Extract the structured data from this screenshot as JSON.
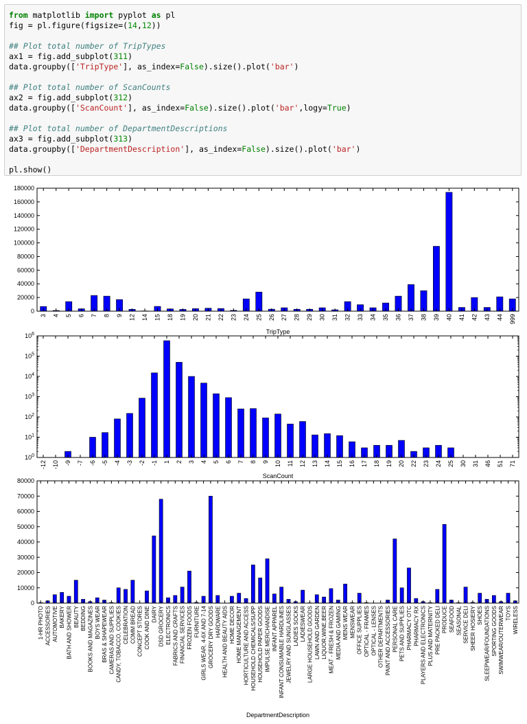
{
  "code_lines": [
    [
      [
        "kw",
        "from"
      ],
      [
        "plain",
        " matplotlib "
      ],
      [
        "kw",
        "import"
      ],
      [
        "plain",
        " pyplot "
      ],
      [
        "kw",
        "as"
      ],
      [
        "plain",
        " pl"
      ]
    ],
    [
      [
        "plain",
        "fig = pl.figure(figsize=("
      ],
      [
        "num",
        "14"
      ],
      [
        "plain",
        ","
      ],
      [
        "num",
        "12"
      ],
      [
        "plain",
        "))"
      ]
    ],
    [
      [
        "plain",
        ""
      ]
    ],
    [
      [
        "comment",
        "## Plot total number of TripTypes"
      ]
    ],
    [
      [
        "plain",
        "ax1 = fig.add_subplot("
      ],
      [
        "num",
        "311"
      ],
      [
        "plain",
        ")"
      ]
    ],
    [
      [
        "plain",
        "data.groupby(["
      ],
      [
        "str",
        "'TripType'"
      ],
      [
        "plain",
        "], as_index="
      ],
      [
        "bool",
        "False"
      ],
      [
        "plain",
        ").size().plot("
      ],
      [
        "str",
        "'bar'"
      ],
      [
        "plain",
        ")"
      ]
    ],
    [
      [
        "plain",
        ""
      ]
    ],
    [
      [
        "comment",
        "## Plot total number of ScanCounts"
      ]
    ],
    [
      [
        "plain",
        "ax2 = fig.add_subplot("
      ],
      [
        "num",
        "312"
      ],
      [
        "plain",
        ")"
      ]
    ],
    [
      [
        "plain",
        "data.groupby(["
      ],
      [
        "str",
        "'ScanCount'"
      ],
      [
        "plain",
        "], as_index="
      ],
      [
        "bool",
        "False"
      ],
      [
        "plain",
        ").size().plot("
      ],
      [
        "str",
        "'bar'"
      ],
      [
        "plain",
        ",logy="
      ],
      [
        "bool",
        "True"
      ],
      [
        "plain",
        ")"
      ]
    ],
    [
      [
        "plain",
        ""
      ]
    ],
    [
      [
        "comment",
        "## Plot total number of DepartmentDescriptions"
      ]
    ],
    [
      [
        "plain",
        "ax3 = fig.add_subplot("
      ],
      [
        "num",
        "313"
      ],
      [
        "plain",
        ")"
      ]
    ],
    [
      [
        "plain",
        "data.groupby(["
      ],
      [
        "str",
        "'DepartmentDescription'"
      ],
      [
        "plain",
        "], as_index="
      ],
      [
        "bool",
        "False"
      ],
      [
        "plain",
        ").size().plot("
      ],
      [
        "str",
        "'bar'"
      ],
      [
        "plain",
        ")"
      ]
    ],
    [
      [
        "plain",
        ""
      ]
    ],
    [
      [
        "plain",
        "pl.show()"
      ]
    ]
  ],
  "chart_data": [
    {
      "type": "bar",
      "xlabel": "TripType",
      "ylabel": "",
      "ylim": [
        0,
        180000
      ],
      "yticks": [
        0,
        20000,
        40000,
        60000,
        80000,
        100000,
        120000,
        140000,
        160000,
        180000
      ],
      "bar_color": "#0000ff",
      "categories": [
        "3",
        "4",
        "5",
        "6",
        "7",
        "8",
        "9",
        "12",
        "14",
        "15",
        "18",
        "19",
        "20",
        "21",
        "22",
        "23",
        "24",
        "25",
        "26",
        "27",
        "28",
        "29",
        "30",
        "31",
        "32",
        "33",
        "34",
        "35",
        "36",
        "37",
        "38",
        "39",
        "40",
        "41",
        "42",
        "43",
        "44",
        "999"
      ],
      "values": [
        6800,
        1000,
        14000,
        3500,
        23000,
        22000,
        17000,
        2700,
        400,
        7000,
        3300,
        2600,
        3700,
        4300,
        3900,
        1200,
        18000,
        28000,
        2900,
        5000,
        2800,
        2800,
        5000,
        2000,
        14000,
        9500,
        5000,
        12000,
        22000,
        39000,
        30000,
        95000,
        174000,
        5500,
        20000,
        5500,
        21000,
        18000
      ]
    },
    {
      "type": "bar",
      "log_scale": true,
      "xlabel": "ScanCount",
      "ylabel": "",
      "ylim": [
        1,
        1000000
      ],
      "ytick_labels": [
        "10^0",
        "10^1",
        "10^2",
        "10^3",
        "10^4",
        "10^5",
        "10^6"
      ],
      "bar_color": "#0000ff",
      "categories": [
        "-12",
        "-10",
        "-9",
        "-7",
        "-6",
        "-5",
        "-4",
        "-3",
        "-2",
        "-1",
        "1",
        "2",
        "3",
        "4",
        "5",
        "6",
        "7",
        "8",
        "9",
        "10",
        "11",
        "12",
        "13",
        "14",
        "15",
        "16",
        "17",
        "18",
        "19",
        "20",
        "22",
        "23",
        "24",
        "25",
        "30",
        "31",
        "46",
        "51",
        "71"
      ],
      "values": [
        1,
        1,
        2,
        1,
        10,
        17,
        80,
        150,
        850,
        15000,
        580000,
        50000,
        10000,
        4700,
        1400,
        900,
        250,
        260,
        90,
        140,
        45,
        60,
        13,
        15,
        12,
        6,
        3,
        4,
        4,
        7,
        2,
        3,
        4,
        3,
        1,
        1,
        1,
        1,
        1
      ]
    },
    {
      "type": "bar",
      "xlabel": "DepartmentDescription",
      "ylabel": "",
      "ylim": [
        0,
        80000
      ],
      "yticks": [
        0,
        10000,
        20000,
        30000,
        40000,
        50000,
        60000,
        70000,
        80000
      ],
      "bar_color": "#0000ff",
      "categories": [
        "1-HR PHOTO",
        "ACCESSORIES",
        "AUTOMOTIVE",
        "BAKERY",
        "BATH AND SHOWER",
        "BEAUTY",
        "BEDDING",
        "BOOKS AND MAGAZINES",
        "BOYS WEAR",
        "BRAS & SHAPEWEAR",
        "CAMERAS AND SUPPLIES",
        "CANDY, TOBACCO, COOKIES",
        "CELEBRATION",
        "COMM BREAD",
        "CONCEPT STORES",
        "COOK AND DINE",
        "DAIRY",
        "DSD GROCERY",
        "ELECTRONICS",
        "FABRICS AND CRAFTS",
        "FINANCIAL SERVICES",
        "FROZEN FOODS",
        "FURNITURE",
        "GIRLS WEAR, 4-6X AND 7-14",
        "GROCERY DRY GOODS",
        "HARDWARE",
        "HEALTH AND BEAUTY AIDS",
        "HOME DECOR",
        "HOME MANAGEMENT",
        "HORTICULTURE AND ACCESS",
        "HOUSEHOLD CHEMICALS/SUPP",
        "HOUSEHOLD PAPER GOODS",
        "IMPULSE MERCHANDISE",
        "INFANT APPAREL",
        "INFANT CONSUMABLE HARDLINES",
        "JEWELRY AND SUNGLASSES",
        "LADIES SOCKS",
        "LADIESWEAR",
        "LARGE HOUSEHOLD GOODS",
        "LAWN AND GARDEN",
        "LIQUOR,WINE,BEER",
        "MEAT - FRESH & FROZEN",
        "MEDIA AND GAMING",
        "MENS WEAR",
        "MENSWEAR",
        "OFFICE SUPPLIES",
        "OPTICAL - FRAMES",
        "OPTICAL - LENSES",
        "OTHER DEPARTMENTS",
        "PAINT AND ACCESSORIES",
        "PERSONAL CARE",
        "PETS AND SUPPLIES",
        "PHARMACY OTC",
        "PHARMACY RX",
        "PLAYERS AND ELECTRONICS",
        "PLUS AND MATERNITY",
        "PRE PACKED DELI",
        "PRODUCE",
        "SEAFOOD",
        "SEASONAL",
        "SERVICE DELI",
        "SHEER HOSIERY",
        "SHOES",
        "SLEEPWEAR/FOUNDATIONS",
        "SPORTING GOODS",
        "SWIMWEAR/OUTERWEAR",
        "TOYS",
        "WIRELESS"
      ],
      "values": [
        300,
        1500,
        5500,
        7000,
        4500,
        15000,
        2500,
        1000,
        3500,
        2000,
        400,
        10000,
        9000,
        15000,
        100,
        8000,
        44000,
        68000,
        3500,
        5000,
        10500,
        21000,
        500,
        4500,
        70000,
        5000,
        100,
        4500,
        6500,
        3000,
        25000,
        16500,
        29000,
        6000,
        10500,
        2500,
        1000,
        8500,
        200,
        5500,
        4000,
        9500,
        2000,
        12500,
        300,
        6500,
        300,
        100,
        100,
        2000,
        42000,
        10000,
        23000,
        3000,
        1000,
        300,
        9000,
        51500,
        2000,
        300,
        10500,
        500,
        6500,
        2500,
        5000,
        1000,
        6500,
        1500
      ]
    }
  ]
}
